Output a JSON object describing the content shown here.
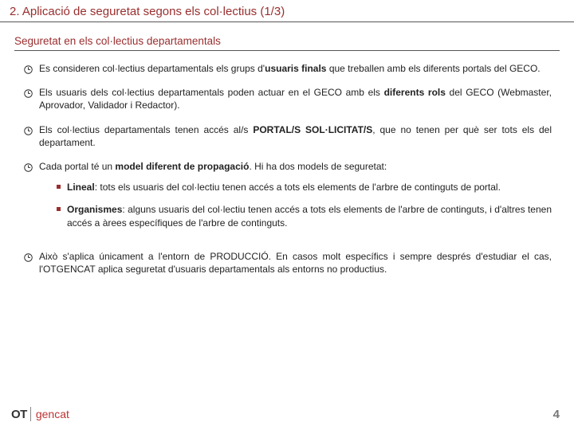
{
  "colors": {
    "accent": "#9a2e2e",
    "text": "#222222",
    "page_num": "#777777",
    "rule": "#555555",
    "logo_dark": "#333333",
    "logo_red": "#bb3333"
  },
  "title": "2. Aplicació de seguretat segons els col·lectius (1/3)",
  "subtitle": "Seguretat en els col·lectius departamentals",
  "bullets": [
    {
      "html": "Es consideren col·lectius departamentals els grups d'<b>usuaris finals</b> que treballen amb els diferents portals del GECO."
    },
    {
      "html": "Els usuaris dels col·lectius departamentals poden actuar en el GECO amb els <b>diferents rols</b> del GECO (Webmaster, Aprovador, Validador i Redactor)."
    },
    {
      "html": "Els col·lectius departamentals tenen accés al/s <b>PORTAL/S SOL·LICITAT/S</b>, que no tenen per què ser tots els del departament."
    },
    {
      "html": "Cada portal té un <b>model diferent de propagació</b>. Hi ha dos models de seguretat:",
      "subs": [
        {
          "html": "<b>Lineal</b>: tots els usuaris del col·lectiu tenen accés a tots els elements de l'arbre de continguts de portal."
        },
        {
          "html": "<b>Organismes</b>: alguns usuaris del col·lectiu tenen accés a tots els elements de l'arbre de continguts, i d'altres tenen accés a àrees específiques de l'arbre de continguts."
        }
      ]
    },
    {
      "html": "Això s'aplica únicament a l'entorn de PRODUCCIÓ. En casos molt específics i sempre després d'estudiar el cas, l'OTGENCAT aplica seguretat d'usuaris departamentals als entorns no productius."
    }
  ],
  "footer": {
    "logo_ot": "OT",
    "logo_gencat": "gencat",
    "page_number": "4"
  }
}
